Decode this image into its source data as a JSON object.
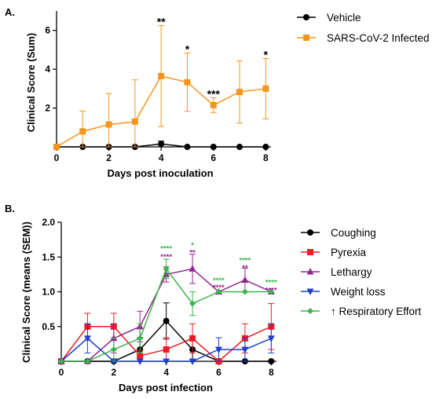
{
  "chart_data": [
    {
      "panel_label": "A.",
      "type": "line",
      "xlabel": "Days post inoculation",
      "ylabel": "Clinical Score (Sum)",
      "xlim": [
        0,
        8.2
      ],
      "ylim": [
        0,
        7
      ],
      "xticks": [
        0,
        2,
        4,
        6,
        8
      ],
      "yticks": [
        2,
        4,
        6
      ],
      "legend_position": "right",
      "series": [
        {
          "name": "Vehicle",
          "color": "#000000",
          "marker": "circle",
          "x": [
            0,
            1,
            2,
            3,
            4,
            5,
            6,
            7,
            8
          ],
          "y": [
            0,
            0,
            0,
            0,
            0.15,
            0,
            0,
            0,
            0
          ],
          "err": [
            0,
            0,
            0,
            0,
            0.15,
            0,
            0,
            0,
            0
          ]
        },
        {
          "name": "SARS-CoV-2 Infected",
          "color": "#f7941d",
          "marker": "square",
          "x": [
            0,
            1,
            2,
            3,
            4,
            5,
            6,
            7,
            8
          ],
          "y": [
            0,
            0.8,
            1.15,
            1.3,
            3.65,
            3.33,
            2.15,
            2.83,
            3.0
          ],
          "err": [
            0,
            1.05,
            1.6,
            2.15,
            2.6,
            1.5,
            0.38,
            1.6,
            1.55
          ]
        }
      ],
      "annotations": [
        {
          "x": 4,
          "y": 6.25,
          "text": "**",
          "color": "#000000"
        },
        {
          "x": 5,
          "y": 4.83,
          "text": "*",
          "color": "#000000"
        },
        {
          "x": 6,
          "y": 2.53,
          "text": "***",
          "color": "#000000"
        },
        {
          "x": 8,
          "y": 4.55,
          "text": "*",
          "color": "#000000"
        }
      ]
    },
    {
      "panel_label": "B.",
      "type": "line",
      "xlabel": "Days post infection",
      "ylabel": "Clinical Score (means (SEM))",
      "xlim": [
        0,
        8.2
      ],
      "ylim": [
        0,
        2.0
      ],
      "xticks": [
        0,
        2,
        4,
        6,
        8
      ],
      "yticks": [
        0.5,
        1.0,
        1.5,
        2.0
      ],
      "ytick_labels": [
        "0.5",
        "1.0",
        "1.5",
        "2.0"
      ],
      "legend_position": "right",
      "series": [
        {
          "name": "Coughing",
          "color": "#000000",
          "marker": "circle",
          "x": [
            0,
            1,
            2,
            3,
            4,
            5,
            6,
            7,
            8
          ],
          "y": [
            0,
            0,
            0,
            0.17,
            0.58,
            0.17,
            0,
            0,
            0
          ],
          "err": [
            0,
            0,
            0,
            0.17,
            0.26,
            0.17,
            0,
            0,
            0
          ]
        },
        {
          "name": "Pyrexia",
          "color": "#ee1c25",
          "marker": "square",
          "x": [
            0,
            1,
            2,
            3,
            4,
            5,
            6,
            7,
            8
          ],
          "y": [
            0,
            0.5,
            0.5,
            0.08,
            0.17,
            0.33,
            0,
            0.33,
            0.5
          ],
          "err": [
            0,
            0.19,
            0.19,
            0.08,
            0.17,
            0.21,
            0,
            0.21,
            0.33
          ]
        },
        {
          "name": "Lethargy",
          "color": "#92278f",
          "marker": "triangle-up",
          "x": [
            0,
            1,
            2,
            3,
            4,
            5,
            6,
            7,
            8
          ],
          "y": [
            0,
            0,
            0.33,
            0.5,
            1.25,
            1.33,
            1.0,
            1.17,
            1.0
          ],
          "err": [
            0,
            0,
            0.21,
            0.22,
            0.11,
            0.21,
            0,
            0.17,
            0
          ]
        },
        {
          "name": "Weight loss",
          "color": "#1f3fcc",
          "marker": "triangle-down",
          "x": [
            0,
            1,
            2,
            3,
            4,
            5,
            6,
            7,
            8
          ],
          "y": [
            0,
            0.33,
            0,
            0,
            0,
            0,
            0.17,
            0.17,
            0.33
          ],
          "err": [
            0,
            0.21,
            0,
            0,
            0,
            0,
            0.17,
            0.17,
            0.21
          ]
        },
        {
          "name": "↑ Respiratory Effort",
          "color": "#39b54a",
          "marker": "diamond",
          "x": [
            0,
            1,
            2,
            3,
            4,
            5,
            6,
            7,
            8
          ],
          "y": [
            0,
            0,
            0.17,
            0.33,
            1.33,
            0.83,
            1.0,
            1.0,
            1.0
          ],
          "err": [
            0,
            0,
            0.17,
            0.21,
            0.14,
            0.17,
            0,
            0,
            0
          ]
        }
      ],
      "annotations": [
        {
          "x": 4,
          "y": 1.59,
          "text": "****",
          "color": "#39b54a"
        },
        {
          "x": 4,
          "y": 1.47,
          "text": "****",
          "color": "#92278f"
        },
        {
          "x": 5,
          "y": 1.64,
          "text": "*",
          "color": "#39b54a"
        },
        {
          "x": 5,
          "y": 1.53,
          "text": "**",
          "color": "#92278f"
        },
        {
          "x": 6,
          "y": 1.13,
          "text": "****",
          "color": "#39b54a"
        },
        {
          "x": 6,
          "y": 1.03,
          "text": "****",
          "color": "#92278f"
        },
        {
          "x": 7,
          "y": 1.42,
          "text": "****",
          "color": "#39b54a"
        },
        {
          "x": 7,
          "y": 1.31,
          "text": "**",
          "color": "#92278f"
        },
        {
          "x": 8,
          "y": 1.1,
          "text": "****",
          "color": "#39b54a"
        },
        {
          "x": 8,
          "y": 0.99,
          "text": "****",
          "color": "#92278f"
        }
      ]
    }
  ]
}
